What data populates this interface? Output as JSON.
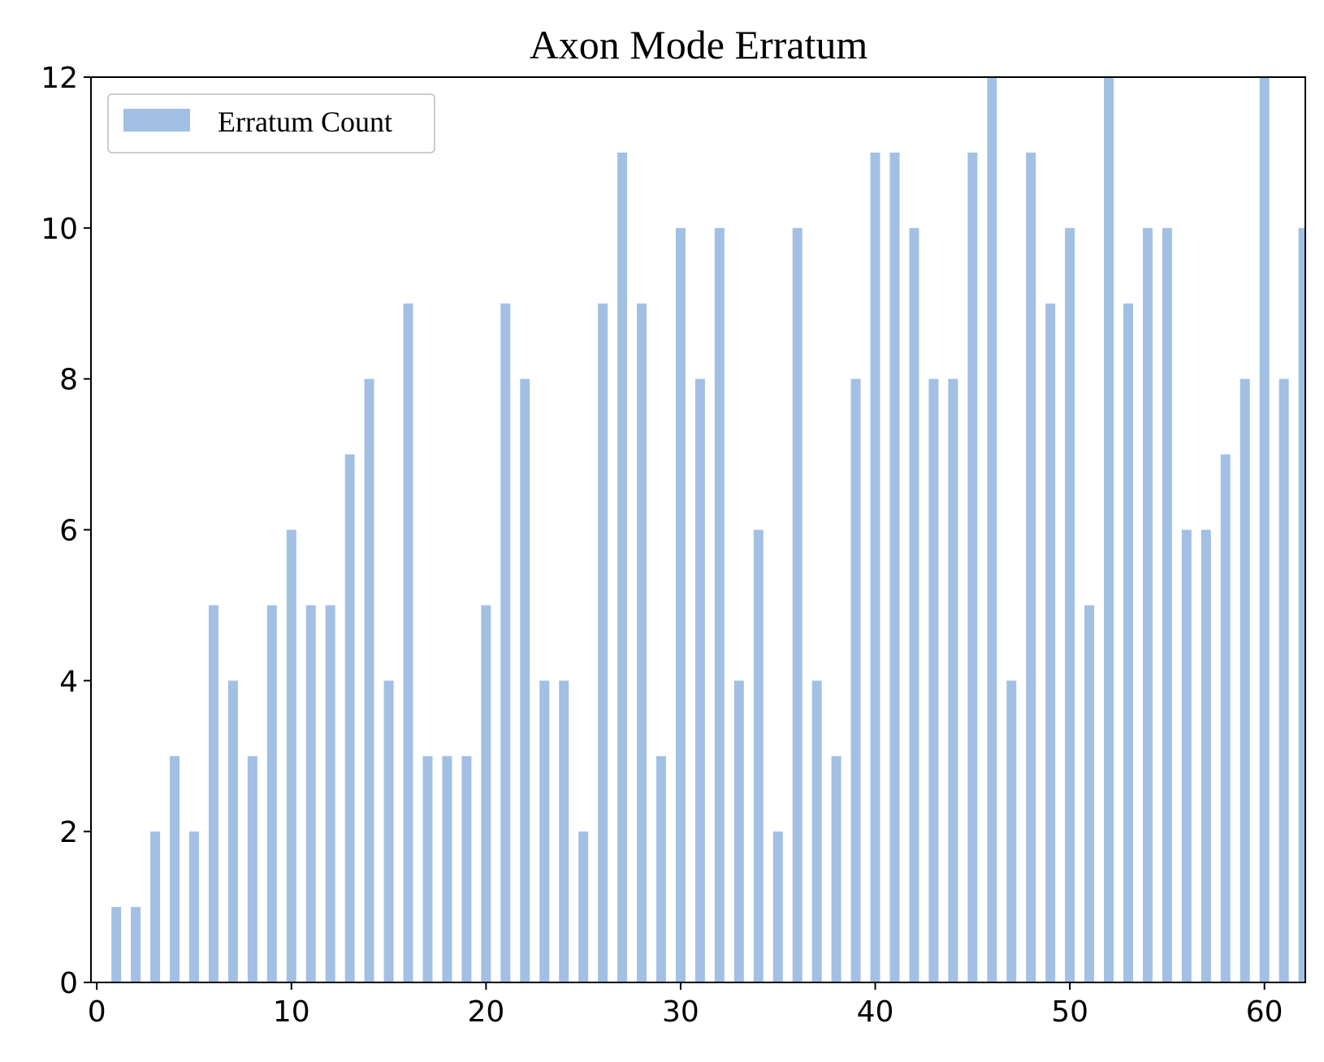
{
  "chart_data": {
    "type": "bar",
    "title": "Axon Mode Erratum",
    "xlabel": "",
    "ylabel": "",
    "x": [
      1,
      2,
      3,
      4,
      5,
      6,
      7,
      8,
      9,
      10,
      11,
      12,
      13,
      14,
      15,
      16,
      17,
      18,
      19,
      20,
      21,
      22,
      23,
      24,
      25,
      26,
      27,
      28,
      29,
      30,
      31,
      32,
      33,
      34,
      35,
      36,
      37,
      38,
      39,
      40,
      41,
      42,
      43,
      44,
      45,
      46,
      47,
      48,
      49,
      50,
      51,
      52,
      53,
      54,
      55,
      56,
      57,
      58,
      59,
      60,
      61,
      62
    ],
    "series": [
      {
        "name": "Erratum Count",
        "color": "#a2c0e4",
        "values": [
          1,
          1,
          2,
          3,
          2,
          5,
          4,
          3,
          5,
          6,
          5,
          5,
          7,
          8,
          4,
          9,
          3,
          3,
          3,
          5,
          9,
          8,
          4,
          4,
          2,
          9,
          11,
          9,
          3,
          10,
          8,
          10,
          4,
          6,
          2,
          10,
          4,
          3,
          8,
          11,
          11,
          10,
          8,
          8,
          11,
          12,
          4,
          11,
          9,
          10,
          5,
          12,
          9,
          10,
          10,
          6,
          6,
          7,
          8,
          12,
          8,
          10
        ]
      }
    ],
    "xlim": [
      -0.3,
      62.1
    ],
    "ylim": [
      0,
      12
    ],
    "xticks": [
      "0",
      "10",
      "20",
      "30",
      "40",
      "50",
      "60"
    ],
    "yticks": [
      "0",
      "2",
      "4",
      "6",
      "8",
      "10",
      "12"
    ],
    "grid": false,
    "legend_position": "top-left"
  }
}
